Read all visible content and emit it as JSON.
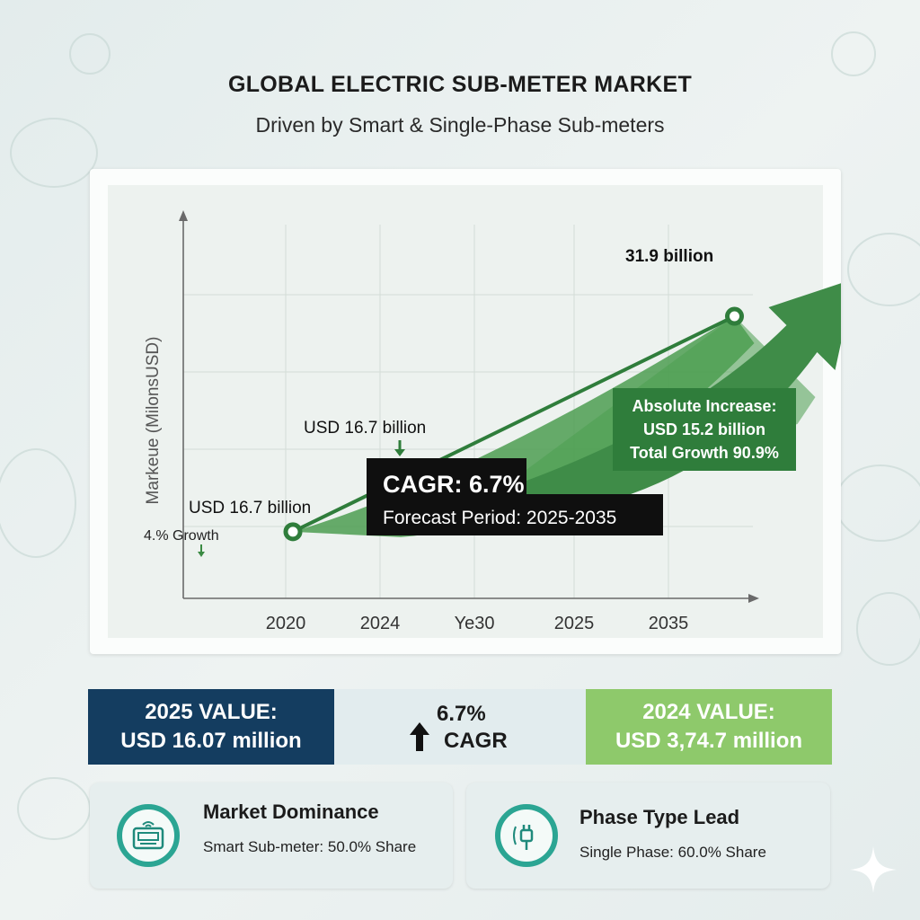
{
  "title": "GLOBAL ELECTRIC SUB-METER MARKET",
  "subtitle": "Driven by Smart & Single-Phase Sub-meters",
  "chart_data": {
    "type": "line",
    "ylabel": "Markeue (MilonsUSD)",
    "categories": [
      "2020",
      "2024",
      "Ye30",
      "2025",
      "2035"
    ],
    "series": [
      {
        "points": [
          [
            0,
            16.7
          ],
          [
            4.7,
            31.9
          ]
        ]
      }
    ],
    "ylim": [
      12,
      39
    ],
    "grid": true,
    "annotations": {
      "start_value": "USD 16.7 billion",
      "start_growth": "4.% Growth",
      "mid_value": "USD 16.7 billion",
      "end_value": "31.9 billion",
      "cagr": "CAGR: 6.7%",
      "forecast": "Forecast Period: 2025-2035",
      "increase_line1": "Absolute Increase:",
      "increase_line2": "USD 15.2 billion",
      "increase_line3": "Total Growth 90.9%"
    },
    "colors": {
      "line": "#2f7d3b",
      "area": "#4c9e51",
      "arrow": "#3f8c48",
      "increase_box": "#2f7d3b",
      "cagr_box": "#0f0f0f"
    }
  },
  "stats": {
    "left": {
      "line1": "2025 VALUE:",
      "line2": "USD 16.07 million",
      "color": "#143d60"
    },
    "mid": {
      "pct": "6.7%",
      "label": "CAGR"
    },
    "right": {
      "line1": "2024 VALUE:",
      "line2": "USD 3,74.7 million",
      "color": "#8ec96b"
    }
  },
  "cards": [
    {
      "icon": "smart-meter-icon",
      "title": "Market Dominance",
      "desc": "Smart Sub-meter: 50.0% Share"
    },
    {
      "icon": "plug-icon",
      "title": "Phase Type Lead",
      "desc": "Single Phase: 60.0% Share"
    }
  ]
}
